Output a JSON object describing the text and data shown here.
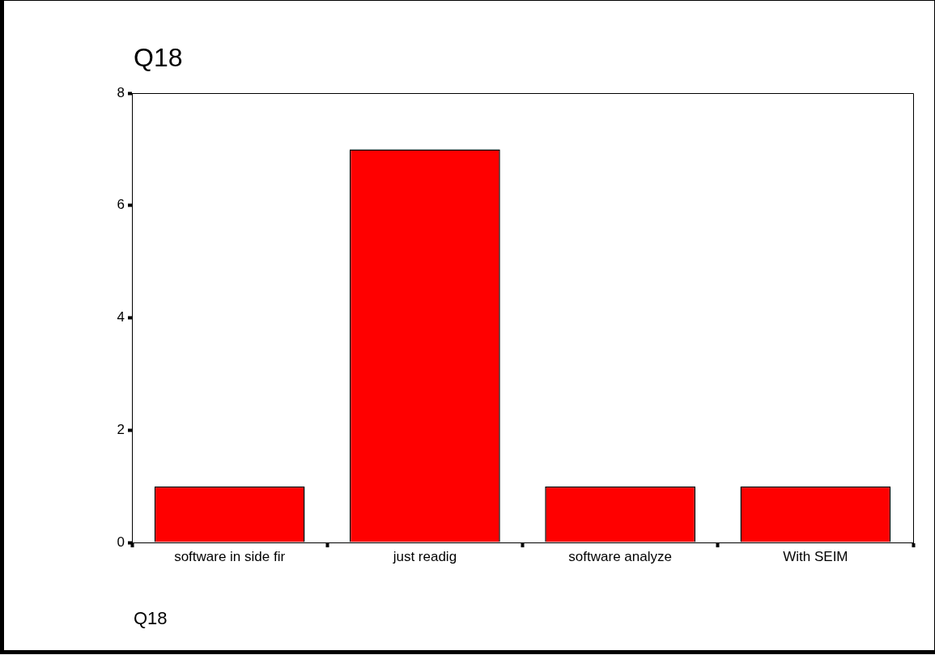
{
  "chart_data": {
    "type": "bar",
    "title": "Q18",
    "xlabel": "Q18",
    "categories": [
      "software in side fir",
      "just readig",
      "software analyze",
      "With SEIM"
    ],
    "values": [
      1,
      7,
      1,
      1
    ],
    "color": "#ff0000",
    "ylim": [
      0,
      8
    ],
    "yticks": [
      0,
      2,
      4,
      6,
      8
    ],
    "grid": false,
    "legend": false
  }
}
